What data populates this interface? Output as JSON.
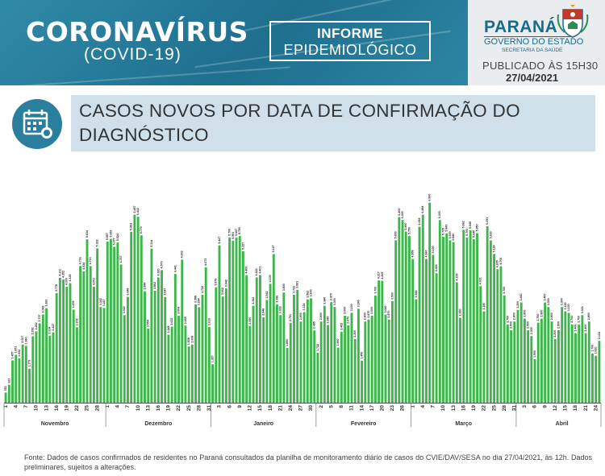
{
  "header": {
    "title": "CORONAVÍRUS",
    "subtitle": "(COVID-19)",
    "informe_line1": "INFORME",
    "informe_line2": "EPIDEMIOLÓGICO",
    "state": "PARANÁ",
    "government": "GOVERNO DO ESTADO",
    "secretariat": "SECRETARIA DA SAÚDE",
    "published": "PUBLICADO ÀS 15H30",
    "date": "27/04/2021"
  },
  "section": {
    "title": "CASOS NOVOS POR DATA DE CONFIRMAÇÃO DO DIAGNÓSTICO"
  },
  "footer": {
    "note": "Fonte: Dados de casos confirmados de residentes no Paraná consultados da planilha de monitoramento diário de casos do CVIE/DAV/SESA no dia 27/04/2021, às 12h. Dados preliminares, sujeitos a alterações."
  },
  "colors": {
    "bar": "#3cb54a",
    "banner": "#2a7f9e",
    "section_bg": "#cfe0ea"
  },
  "chart_data": {
    "type": "bar",
    "y_range": [
      0,
      7500
    ],
    "grid": false,
    "month_labels": [
      {
        "label": "Novembro",
        "start": 0,
        "end": 29
      },
      {
        "label": "Dezembro",
        "start": 30,
        "end": 60
      },
      {
        "label": "Janeiro",
        "start": 61,
        "end": 91
      },
      {
        "label": "Fevereiro",
        "start": 92,
        "end": 119
      },
      {
        "label": "Março",
        "start": 120,
        "end": 150
      },
      {
        "label": "Abril",
        "start": 151,
        "end": 177
      }
    ],
    "tick_labels": [
      "1",
      "4",
      "7",
      "10",
      "13",
      "16",
      "19",
      "22",
      "25",
      "28",
      "1",
      "4",
      "7",
      "10",
      "13",
      "16",
      "19",
      "22",
      "25",
      "28",
      "31",
      "3",
      "6",
      "9",
      "12",
      "15",
      "18",
      "21",
      "24",
      "27",
      "30",
      "2",
      "5",
      "8",
      "11",
      "14",
      "17",
      "20",
      "23",
      "26",
      "1",
      "4",
      "7",
      "10",
      "13",
      "16",
      "19",
      "22",
      "25",
      "28",
      "31",
      "3",
      "6",
      "9",
      "12",
      "15",
      "18",
      "21",
      "24",
      "27"
    ],
    "values": [
      352,
      621,
      1457,
      1651,
      1532,
      2007,
      1960,
      1173,
      2292,
      2462,
      2737,
      3042,
      3262,
      2314,
      2427,
      3779,
      4311,
      4252,
      4000,
      4125,
      3209,
      2602,
      4716,
      4534,
      5634,
      4713,
      4001,
      5322,
      3302,
      3267,
      5557,
      5652,
      5377,
      5524,
      4767,
      3020,
      3648,
      5893,
      6487,
      6412,
      5770,
      3844,
      2554,
      5314,
      3862,
      4320,
      4573,
      3647,
      2348,
      2622,
      4441,
      3004,
      4933,
      2659,
      1938,
      2008,
      3388,
      3294,
      3722,
      4673,
      2610,
      1327,
      3979,
      5427,
      3662,
      3942,
      5700,
      5591,
      5697,
      5750,
      5227,
      4400,
      2650,
      3342,
      4322,
      4401,
      2948,
      3542,
      4100,
      5127,
      3396,
      3022,
      3800,
      1890,
      2751,
      3722,
      3891,
      2800,
      3124,
      3562,
      3600,
      2495,
      1722,
      2800,
      3340,
      2680,
      3470,
      3300,
      1900,
      2452,
      3000,
      2670,
      3100,
      2200,
      3240,
      1450,
      2800,
      2870,
      3000,
      3700,
      4217,
      4205,
      3040,
      2870,
      3500,
      5600,
      6400,
      6300,
      5900,
      5750,
      4958,
      3568,
      6069,
      6484,
      4960,
      6900,
      5100,
      4466,
      6300,
      5725,
      5843,
      5600,
      5540,
      4153,
      2930,
      5962,
      5700,
      5945,
      5640,
      5850,
      4021,
      3150,
      6091,
      5600,
      5129,
      4605,
      4706,
      3700,
      2700,
      2500,
      2800,
      3200,
      3460,
      2900,
      2500,
      2300,
      1500,
      2760,
      2900,
      3457,
      3300,
      2800,
      2200,
      2500,
      3300,
      3153,
      3100,
      2700,
      2400,
      2700,
      3021,
      2400,
      2800,
      1700,
      1620,
      2134
    ]
  }
}
